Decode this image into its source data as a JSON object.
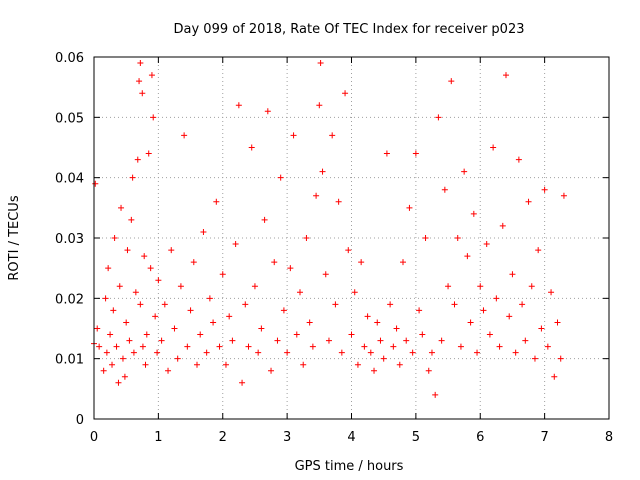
{
  "chart_data": {
    "type": "scatter",
    "title": "Day 099 of 2018, Rate Of TEC Index for receiver p023",
    "xlabel": "GPS time / hours",
    "ylabel": "ROTI / TECUs",
    "xlim": [
      0,
      8
    ],
    "ylim": [
      0,
      0.06
    ],
    "x_ticks": [
      0,
      1,
      2,
      3,
      4,
      5,
      6,
      7,
      8
    ],
    "x_tick_labels": [
      "0",
      "1",
      "2",
      "3",
      "4",
      "5",
      "6",
      "7",
      "8"
    ],
    "y_ticks": [
      0,
      0.01,
      0.02,
      0.03,
      0.04,
      0.05,
      0.06
    ],
    "y_tick_labels": [
      "0",
      "0.01",
      "0.02",
      "0.03",
      "0.04",
      "0.05",
      "0.06"
    ],
    "grid": true,
    "marker": "+",
    "color": "#ff0000",
    "series": [
      {
        "name": "ROTI",
        "x": [
          0.0,
          0.02,
          0.05,
          0.08,
          0.15,
          0.18,
          0.2,
          0.22,
          0.25,
          0.28,
          0.3,
          0.32,
          0.35,
          0.38,
          0.4,
          0.42,
          0.45,
          0.48,
          0.5,
          0.52,
          0.55,
          0.58,
          0.6,
          0.62,
          0.65,
          0.68,
          0.7,
          0.72,
          0.72,
          0.75,
          0.76,
          0.78,
          0.8,
          0.82,
          0.85,
          0.88,
          0.9,
          0.92,
          0.95,
          0.98,
          1.0,
          1.05,
          1.1,
          1.15,
          1.2,
          1.25,
          1.3,
          1.35,
          1.4,
          1.45,
          1.5,
          1.55,
          1.6,
          1.65,
          1.7,
          1.75,
          1.8,
          1.85,
          1.9,
          1.95,
          2.0,
          2.05,
          2.1,
          2.15,
          2.2,
          2.25,
          2.3,
          2.35,
          2.4,
          2.45,
          2.5,
          2.55,
          2.6,
          2.65,
          2.7,
          2.75,
          2.8,
          2.85,
          2.9,
          2.95,
          3.0,
          3.05,
          3.1,
          3.15,
          3.2,
          3.25,
          3.3,
          3.35,
          3.4,
          3.45,
          3.5,
          3.52,
          3.55,
          3.6,
          3.65,
          3.7,
          3.75,
          3.8,
          3.85,
          3.9,
          3.95,
          4.0,
          4.05,
          4.1,
          4.15,
          4.2,
          4.25,
          4.3,
          4.35,
          4.4,
          4.45,
          4.5,
          4.55,
          4.6,
          4.65,
          4.7,
          4.75,
          4.8,
          4.85,
          4.9,
          4.95,
          5.0,
          5.05,
          5.1,
          5.15,
          5.2,
          5.25,
          5.3,
          5.35,
          5.4,
          5.45,
          5.5,
          5.55,
          5.6,
          5.65,
          5.7,
          5.75,
          5.8,
          5.85,
          5.9,
          5.95,
          6.0,
          6.05,
          6.1,
          6.15,
          6.2,
          6.25,
          6.3,
          6.35,
          6.4,
          6.45,
          6.5,
          6.55,
          6.6,
          6.65,
          6.7,
          6.75,
          6.8,
          6.85,
          6.9,
          6.95,
          7.0,
          7.05,
          7.1,
          7.15,
          7.2,
          7.25,
          7.3
        ],
        "y": [
          0.0125,
          0.039,
          0.015,
          0.012,
          0.008,
          0.02,
          0.011,
          0.025,
          0.014,
          0.009,
          0.018,
          0.03,
          0.012,
          0.006,
          0.022,
          0.035,
          0.01,
          0.007,
          0.016,
          0.028,
          0.013,
          0.033,
          0.04,
          0.011,
          0.021,
          0.043,
          0.056,
          0.059,
          0.019,
          0.054,
          0.012,
          0.027,
          0.009,
          0.014,
          0.044,
          0.025,
          0.057,
          0.05,
          0.017,
          0.011,
          0.023,
          0.013,
          0.019,
          0.008,
          0.028,
          0.015,
          0.01,
          0.022,
          0.047,
          0.012,
          0.018,
          0.026,
          0.009,
          0.014,
          0.031,
          0.011,
          0.02,
          0.016,
          0.036,
          0.012,
          0.024,
          0.009,
          0.017,
          0.013,
          0.029,
          0.052,
          0.006,
          0.019,
          0.012,
          0.045,
          0.022,
          0.011,
          0.015,
          0.033,
          0.051,
          0.008,
          0.026,
          0.013,
          0.04,
          0.018,
          0.011,
          0.025,
          0.047,
          0.014,
          0.021,
          0.009,
          0.03,
          0.016,
          0.012,
          0.037,
          0.052,
          0.059,
          0.041,
          0.024,
          0.013,
          0.047,
          0.019,
          0.036,
          0.011,
          0.054,
          0.028,
          0.014,
          0.021,
          0.009,
          0.026,
          0.012,
          0.017,
          0.011,
          0.008,
          0.016,
          0.013,
          0.01,
          0.044,
          0.019,
          0.012,
          0.015,
          0.009,
          0.026,
          0.013,
          0.035,
          0.011,
          0.044,
          0.018,
          0.014,
          0.03,
          0.008,
          0.011,
          0.004,
          0.05,
          0.013,
          0.038,
          0.022,
          0.056,
          0.019,
          0.03,
          0.012,
          0.041,
          0.027,
          0.016,
          0.034,
          0.011,
          0.022,
          0.018,
          0.029,
          0.014,
          0.045,
          0.02,
          0.012,
          0.032,
          0.057,
          0.017,
          0.024,
          0.011,
          0.043,
          0.019,
          0.013,
          0.036,
          0.022,
          0.01,
          0.028,
          0.015,
          0.038,
          0.012,
          0.021,
          0.007,
          0.016,
          0.01,
          0.037
        ]
      }
    ]
  }
}
